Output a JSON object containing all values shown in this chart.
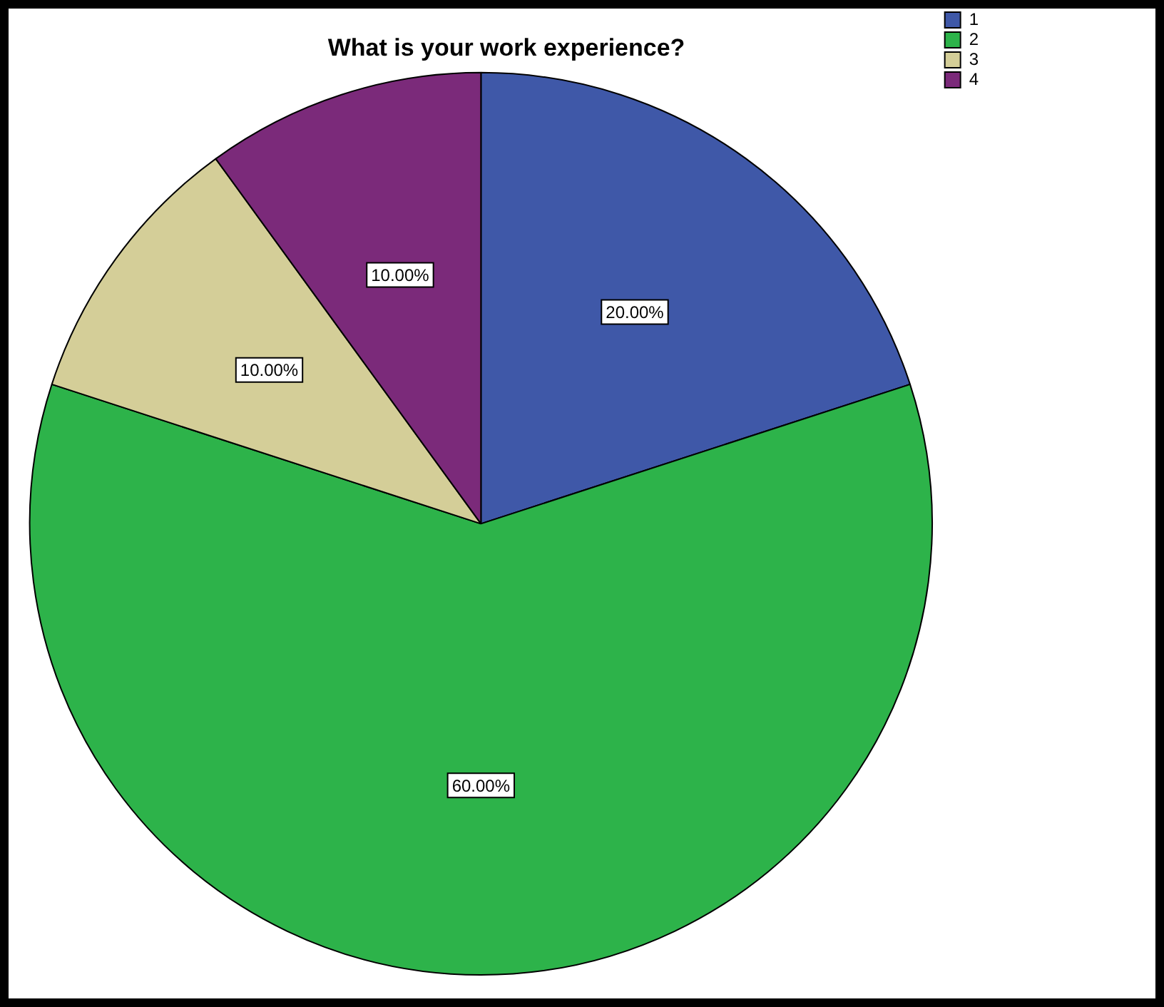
{
  "chart_data": {
    "type": "pie",
    "title": "What is your work experience?",
    "categories": [
      "1",
      "2",
      "3",
      "4"
    ],
    "values": [
      20,
      60,
      10,
      10
    ],
    "colors": [
      "#3f58a8",
      "#2db34a",
      "#d4ce98",
      "#7b2a7a"
    ],
    "value_labels": [
      "20.00%",
      "60.00%",
      "10.00%",
      "10.00%"
    ],
    "legend": "top right"
  }
}
